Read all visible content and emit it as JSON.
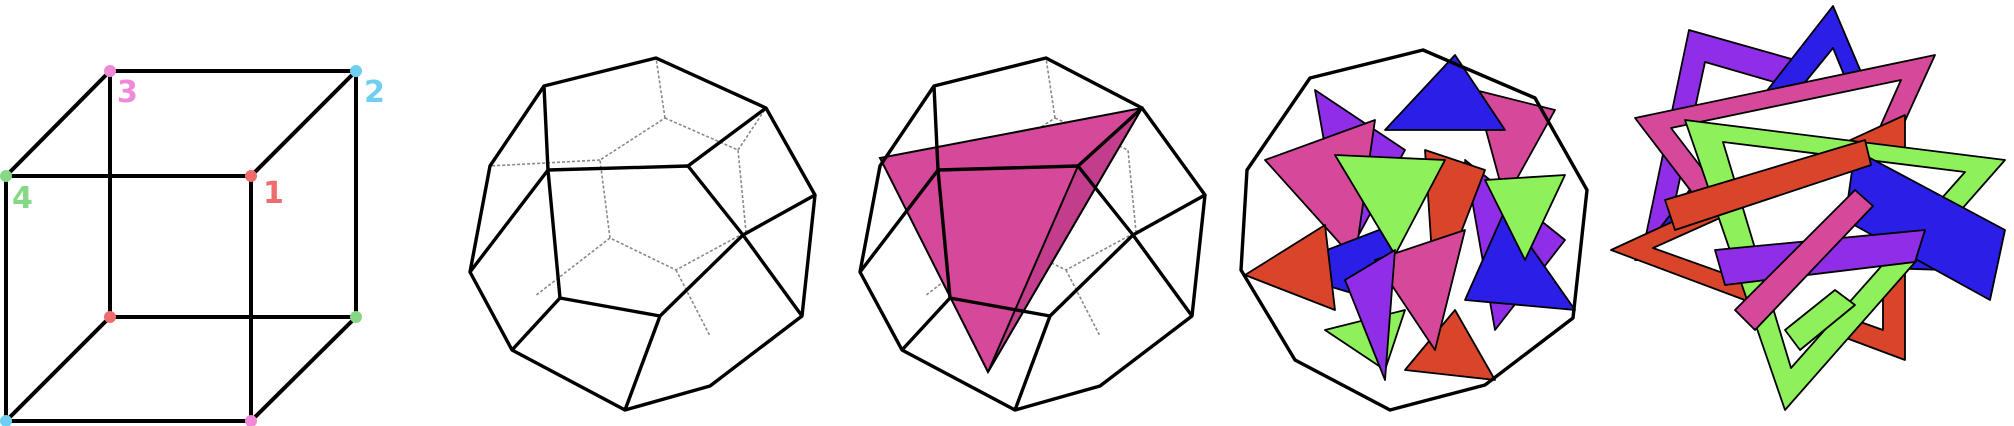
{
  "colors": {
    "background": "#ffffff",
    "edge": "#000000",
    "hidden_edge": "#8a8a8a",
    "vertex_1": "#f06b6b",
    "vertex_2": "#6ecff0",
    "vertex_3": "#f08ad8",
    "vertex_4": "#86d886",
    "magenta": "#d6489a",
    "blue": "#2b1ee6",
    "purple": "#8f2ee6",
    "red": "#d8452a",
    "green": "#8ef05a"
  },
  "cube": {
    "vertex_labels": [
      {
        "text": "1",
        "color": "#f06b6b"
      },
      {
        "text": "2",
        "color": "#6ecff0"
      },
      {
        "text": "3",
        "color": "#f08ad8"
      },
      {
        "text": "4",
        "color": "#86d886"
      }
    ]
  },
  "panels": [
    {
      "name": "cube-with-labeled-vertices",
      "icon": "cube-icon"
    },
    {
      "name": "dodecahedron-wireframe",
      "icon": "dodecahedron-icon"
    },
    {
      "name": "dodecahedron-with-one-tetrahedron",
      "icon": "tetrahedron-in-dodecahedron-icon"
    },
    {
      "name": "dodecahedron-with-five-tetrahedra",
      "icon": "five-tetrahedra-compound-icon"
    },
    {
      "name": "compound-of-five-tetrahedra-frames",
      "icon": "tetrahedra-frames-compound-icon"
    }
  ]
}
